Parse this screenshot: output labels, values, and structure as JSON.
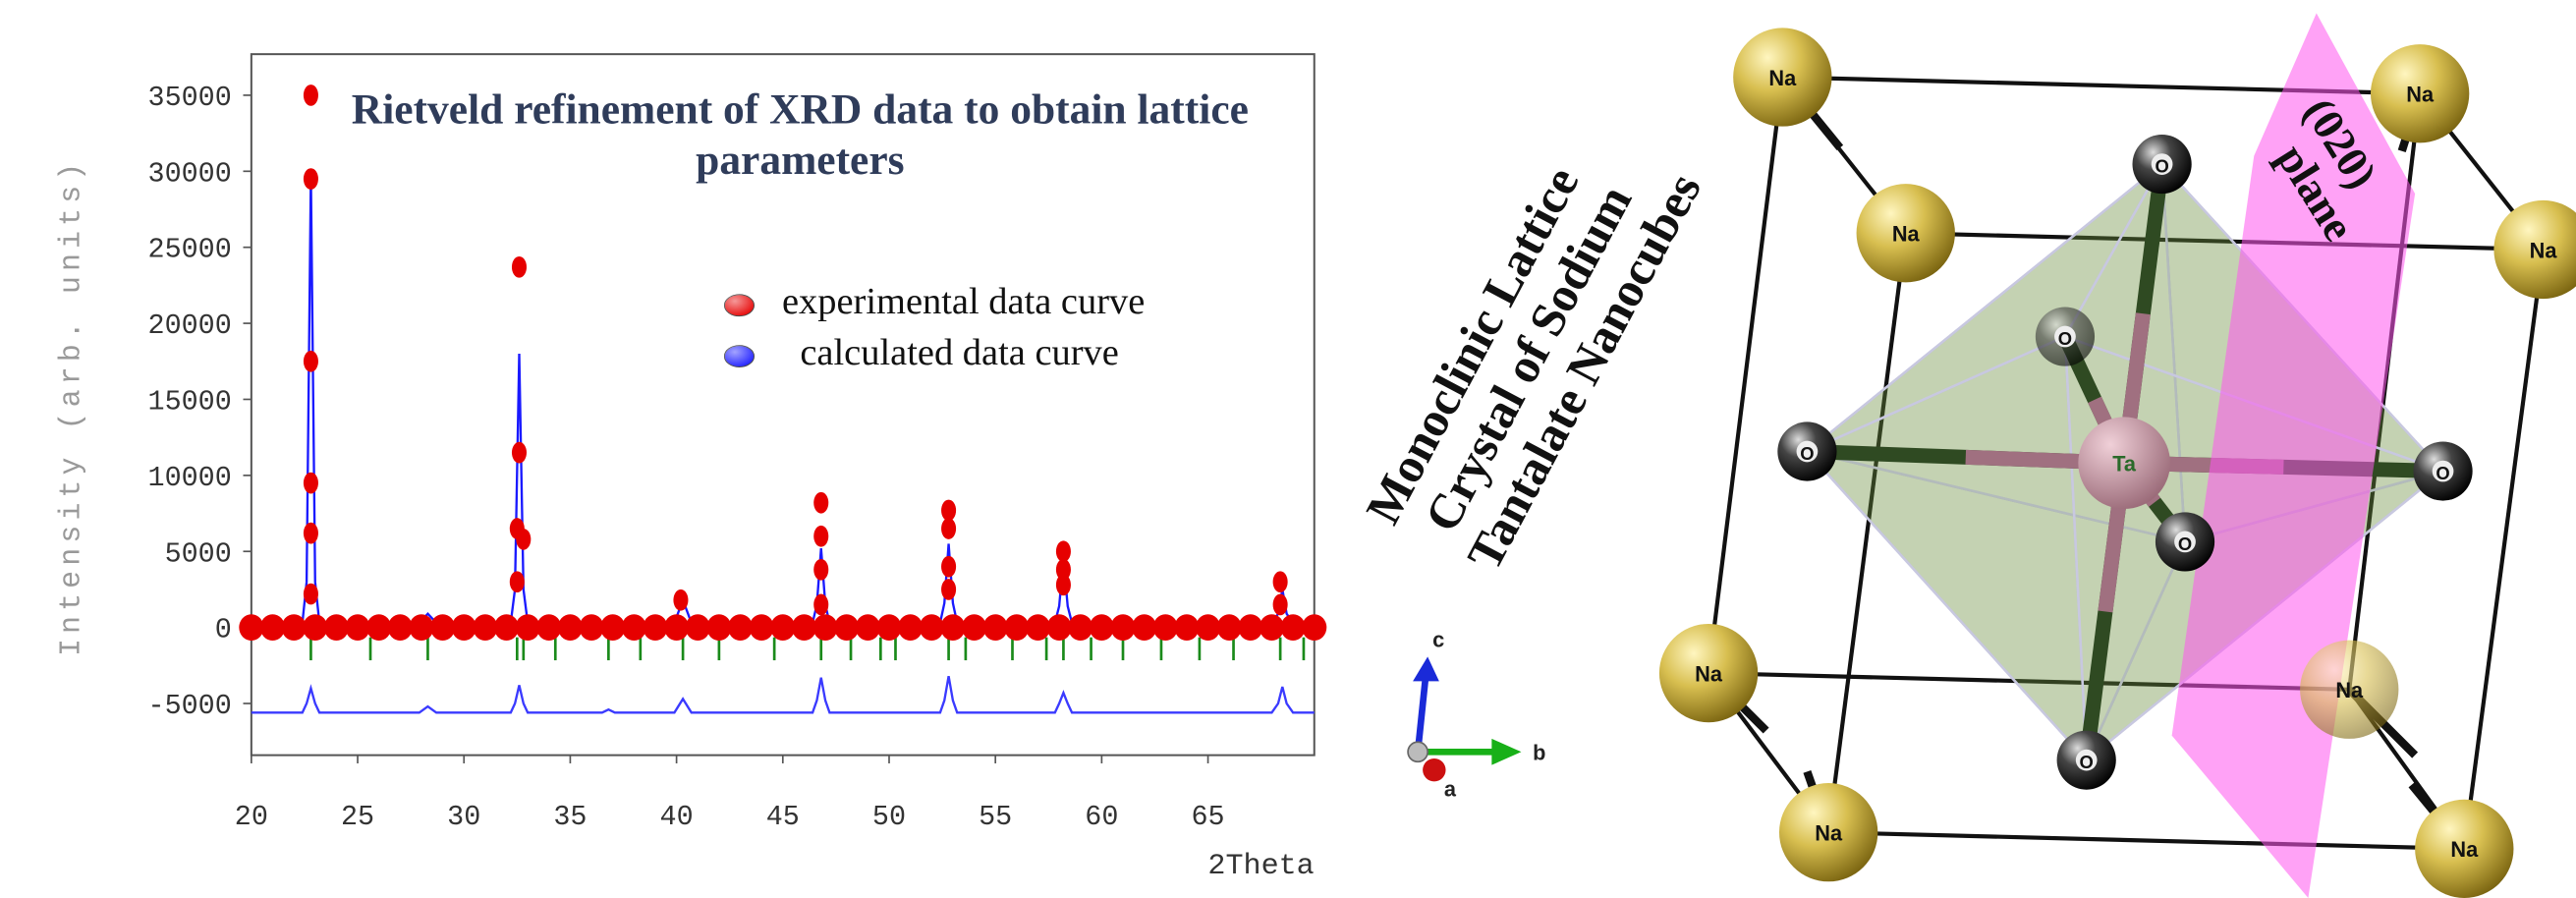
{
  "chart_data": {
    "type": "line",
    "title": "Rietveld refinement of XRD data to obtain lattice parameters",
    "x_label": "2Theta",
    "y_label": "Intensity (arb. units)",
    "xlim": [
      20,
      70
    ],
    "ylim": [
      -8400,
      37700
    ],
    "xticks": [
      20,
      25,
      30,
      35,
      40,
      45,
      50,
      55,
      60,
      65
    ],
    "yticks": [
      -5000,
      0,
      5000,
      10000,
      15000,
      20000,
      25000,
      30000,
      35000
    ],
    "series": [
      {
        "name": "calculated data curve",
        "color": "#1a1aff",
        "mode": "lines",
        "x": [
          20,
          22.4,
          22.6,
          22.8,
          23.0,
          23.2,
          27.9,
          28.3,
          28.7,
          32.2,
          32.4,
          32.6,
          32.8,
          33.0,
          36.5,
          36.8,
          37.1,
          39.9,
          40.3,
          40.7,
          46.4,
          46.6,
          46.8,
          47.0,
          47.2,
          52.4,
          52.6,
          52.8,
          53.0,
          53.2,
          57.8,
          58.0,
          58.2,
          58.4,
          58.6,
          68.0,
          68.3,
          68.5,
          68.7,
          69.0,
          70
        ],
        "values": [
          300,
          300,
          3000,
          29800,
          3000,
          300,
          300,
          900,
          300,
          300,
          2500,
          18000,
          2500,
          300,
          300,
          700,
          300,
          300,
          1800,
          300,
          300,
          1500,
          5200,
          1500,
          300,
          300,
          1600,
          5500,
          1600,
          300,
          300,
          1400,
          4500,
          1400,
          300,
          300,
          900,
          2500,
          900,
          300,
          300
        ]
      },
      {
        "color": "#3a3aff",
        "mode": "lines",
        "x": [
          20,
          22.4,
          22.6,
          22.8,
          23.0,
          23.2,
          27.9,
          28.3,
          28.7,
          32.2,
          32.4,
          32.6,
          32.8,
          33.0,
          36.5,
          36.8,
          37.1,
          39.9,
          40.3,
          40.7,
          46.4,
          46.6,
          46.8,
          47.0,
          47.2,
          52.4,
          52.6,
          52.8,
          53.0,
          53.2,
          57.8,
          58.0,
          58.2,
          58.4,
          58.6,
          68.0,
          68.3,
          68.5,
          68.7,
          69.0,
          70
        ],
        "values": [
          -5600,
          -5600,
          -5000,
          -4000,
          -5000,
          -5600,
          -5600,
          -5200,
          -5600,
          -5600,
          -5000,
          -3800,
          -5000,
          -5600,
          -5600,
          -5400,
          -5600,
          -5600,
          -4700,
          -5600,
          -5600,
          -4800,
          -3300,
          -4800,
          -5600,
          -5600,
          -4800,
          -3200,
          -4800,
          -5600,
          -5600,
          -5000,
          -4300,
          -5000,
          -5600,
          -5600,
          -5000,
          -3900,
          -5000,
          -5600,
          -5600
        ]
      },
      {
        "name": "experimental data curve",
        "color": "#e60000",
        "mode": "markers",
        "x": [
          20,
          21,
          22,
          23,
          24,
          25,
          26,
          27,
          28,
          29,
          30,
          31,
          32,
          33,
          34,
          35,
          36,
          37,
          38,
          39,
          40,
          41,
          42,
          43,
          44,
          45,
          46,
          47,
          48,
          49,
          50,
          51,
          52,
          53,
          54,
          55,
          56,
          57,
          58,
          59,
          60,
          61,
          62,
          63,
          64,
          65,
          66,
          67,
          68,
          69,
          70,
          22.8,
          22.8,
          22.8,
          22.8,
          22.8,
          22.8,
          32.6,
          32.6,
          32.5,
          32.5,
          32.8,
          40.2,
          46.8,
          46.8,
          46.8,
          46.8,
          52.8,
          52.8,
          52.8,
          52.8,
          58.2,
          58.2,
          58.2,
          68.4,
          68.4
        ],
        "values": [
          0,
          0,
          0,
          0,
          0,
          0,
          0,
          0,
          0,
          0,
          0,
          0,
          0,
          0,
          0,
          0,
          0,
          0,
          0,
          0,
          0,
          0,
          0,
          0,
          0,
          0,
          0,
          0,
          0,
          0,
          0,
          0,
          0,
          0,
          0,
          0,
          0,
          0,
          0,
          0,
          0,
          0,
          0,
          0,
          0,
          0,
          0,
          0,
          0,
          0,
          0,
          35000,
          29500,
          17500,
          9500,
          6200,
          2200,
          23700,
          11500,
          6500,
          3000,
          5800,
          1800,
          8200,
          6000,
          3800,
          1500,
          7700,
          6500,
          4000,
          2500,
          5000,
          3800,
          2800,
          3000,
          1500
        ]
      }
    ],
    "reflections": {
      "color": "#1a8a1a",
      "x": [
        22.8,
        25.6,
        28.3,
        32.5,
        32.8,
        34.3,
        36.8,
        38.3,
        40.3,
        42,
        44.6,
        46.8,
        48.2,
        49.6,
        50.3,
        52.8,
        53.6,
        55.8,
        57.4,
        58.2,
        59.5,
        61,
        62.8,
        64.6,
        66.2,
        68.4,
        69.5
      ]
    },
    "legend": [
      2,
      0
    ]
  },
  "diagram": {
    "title_lines": [
      "Monoclinic Lattice",
      "Crystal of Sodium",
      "Tantalate Nanocubes"
    ],
    "plane_label": [
      "(020)",
      "plane"
    ],
    "axes": [
      "c",
      "b",
      "a"
    ],
    "atoms": [
      "Na",
      "Na",
      "Na",
      "Na",
      "Na",
      "Na",
      "Na",
      "Na",
      "O",
      "O",
      "O",
      "O",
      "O",
      "O",
      "Ta"
    ]
  }
}
